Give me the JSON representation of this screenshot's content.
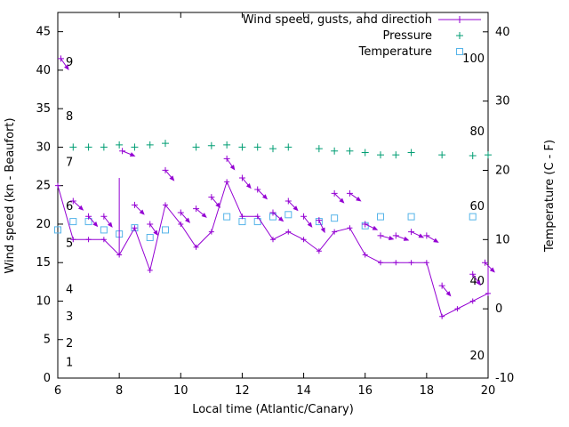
{
  "chart_data": {
    "type": "line",
    "title": "",
    "xlabel": "Local time (Atlantic/Canary)",
    "ylabel": "Wind speed (kn - Beaufort)",
    "y2label": "Temperature (C - F)",
    "xlim": [
      6,
      20
    ],
    "ylim": [
      0,
      47.5
    ],
    "y2lim": [
      -10,
      42.8
    ],
    "xticks": [
      6,
      8,
      10,
      12,
      14,
      16,
      18,
      20
    ],
    "yticks": [
      0,
      5,
      10,
      15,
      20,
      25,
      30,
      35,
      40,
      45
    ],
    "y2ticks": [
      -10,
      0,
      10,
      20,
      30,
      40
    ],
    "grid": false,
    "legend_position": "top-right-inside",
    "legend": [
      {
        "label": "Wind speed, gusts, and direction",
        "series": "wind",
        "marker": "line-plus"
      },
      {
        "label": "Pressure",
        "series": "pressure",
        "marker": "plus"
      },
      {
        "label": "Temperature",
        "series": "temperature",
        "marker": "open-square"
      }
    ],
    "colors": {
      "wind": "#9400d3",
      "pressure": "#009e73",
      "temperature": "#56b4e9",
      "axis": "#000000"
    },
    "beaufort_scale_labels": [
      {
        "label": "1",
        "kn": 2
      },
      {
        "label": "2",
        "kn": 4.5
      },
      {
        "label": "3",
        "kn": 8
      },
      {
        "label": "4",
        "kn": 11.5
      },
      {
        "label": "5",
        "kn": 17.5
      },
      {
        "label": "6",
        "kn": 22.3
      },
      {
        "label": "7",
        "kn": 28
      },
      {
        "label": "8",
        "kn": 34
      },
      {
        "label": "9",
        "kn": 41
      }
    ],
    "right_inner_scale_labels": [
      {
        "label": "20",
        "at_kn": 2.9
      },
      {
        "label": "40",
        "at_kn": 12.6
      },
      {
        "label": "60",
        "at_kn": 22.3
      },
      {
        "label": "80",
        "at_kn": 32
      },
      {
        "label": "100",
        "at_kn": 41.5
      }
    ],
    "wind_speed": {
      "scale": "left",
      "x": [
        6,
        6.5,
        7,
        7.5,
        8,
        8.5,
        9,
        9.5,
        10,
        10.5,
        11,
        11.5,
        12,
        12.5,
        13,
        13.5,
        14,
        14.5,
        15,
        15.5,
        16,
        16.5,
        17,
        17.5,
        18,
        18.5,
        19,
        19.5,
        20
      ],
      "kn": [
        25,
        18,
        18,
        18,
        16,
        19.5,
        14,
        22.5,
        20,
        17,
        19,
        25.5,
        21,
        21,
        18,
        19,
        18,
        16.5,
        19,
        19.5,
        16,
        15,
        15,
        15,
        15,
        8,
        9,
        10,
        11
      ]
    },
    "gust_bars": [
      {
        "x": 8,
        "from_kn": 16,
        "to_kn": 26
      },
      {
        "x": 20,
        "from_kn": 11,
        "to_kn": 14.5
      }
    ],
    "gusts_direction": [
      {
        "x": 6.1,
        "kn": 41.5,
        "deg": 55
      },
      {
        "x": 6.5,
        "kn": 23,
        "deg": 42
      },
      {
        "x": 7,
        "kn": 21,
        "deg": 48
      },
      {
        "x": 7.5,
        "kn": 21,
        "deg": 52
      },
      {
        "x": 8.1,
        "kn": 29.5,
        "deg": 22
      },
      {
        "x": 8.5,
        "kn": 22.5,
        "deg": 45
      },
      {
        "x": 9,
        "kn": 20,
        "deg": 55
      },
      {
        "x": 9.5,
        "kn": 27,
        "deg": 50
      },
      {
        "x": 10,
        "kn": 21.5,
        "deg": 48
      },
      {
        "x": 10.5,
        "kn": 22,
        "deg": 40
      },
      {
        "x": 11,
        "kn": 23.5,
        "deg": 50
      },
      {
        "x": 11.5,
        "kn": 28.5,
        "deg": 55
      },
      {
        "x": 12,
        "kn": 26,
        "deg": 50
      },
      {
        "x": 12.5,
        "kn": 24.5,
        "deg": 45
      },
      {
        "x": 13,
        "kn": 21.5,
        "deg": 40
      },
      {
        "x": 13.5,
        "kn": 23,
        "deg": 45
      },
      {
        "x": 14,
        "kn": 21,
        "deg": 52
      },
      {
        "x": 14.5,
        "kn": 20.5,
        "deg": 65
      },
      {
        "x": 15,
        "kn": 24,
        "deg": 45
      },
      {
        "x": 15.5,
        "kn": 24,
        "deg": 35
      },
      {
        "x": 16,
        "kn": 20,
        "deg": 25
      },
      {
        "x": 16.5,
        "kn": 18.5,
        "deg": 15
      },
      {
        "x": 17,
        "kn": 18.5,
        "deg": 20
      },
      {
        "x": 17.5,
        "kn": 19,
        "deg": 25
      },
      {
        "x": 18,
        "kn": 18.5,
        "deg": 30
      },
      {
        "x": 18.5,
        "kn": 12,
        "deg": 50
      },
      {
        "x": 19.5,
        "kn": 13.5,
        "deg": 55
      },
      {
        "x": 19.9,
        "kn": 15,
        "deg": 45
      }
    ],
    "pressure": {
      "scale": "left",
      "x": [
        6.5,
        7,
        7.5,
        8,
        8.5,
        9,
        9.5,
        10.5,
        11,
        11.5,
        12,
        12.5,
        13,
        13.5,
        14.5,
        15,
        15.5,
        16,
        16.5,
        17,
        17.5,
        18.5,
        19.5,
        20
      ],
      "value": [
        30,
        30,
        30,
        30.3,
        30,
        30.3,
        30.5,
        30,
        30.2,
        30.3,
        30,
        30,
        29.8,
        30,
        29.8,
        29.5,
        29.5,
        29.3,
        29,
        29,
        29.3,
        29,
        28.9,
        29
      ]
    },
    "temperature": {
      "scale": "right",
      "x": [
        6,
        6.5,
        7,
        7.5,
        8,
        8.5,
        9,
        9.5,
        11.5,
        12,
        12.5,
        13,
        13.5,
        14.5,
        15,
        16,
        16.5,
        17.5,
        19.5
      ],
      "celsius": [
        11.4,
        12.6,
        12.6,
        11.4,
        10.8,
        11.7,
        10.3,
        11.4,
        13.3,
        12.6,
        12.6,
        13.3,
        13.6,
        12.6,
        13.1,
        12.0,
        13.3,
        13.3,
        13.3
      ]
    }
  }
}
